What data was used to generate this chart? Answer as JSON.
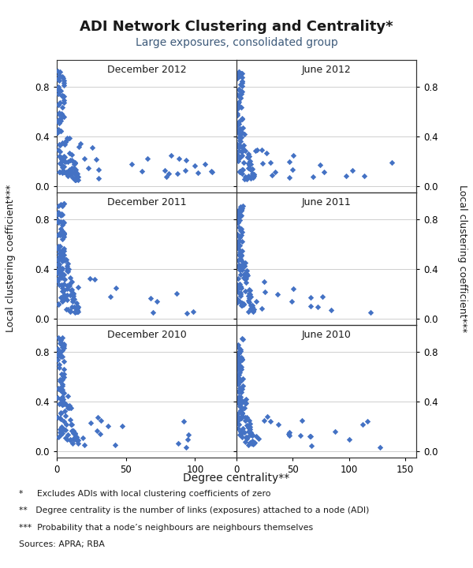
{
  "title": "ADI Network Clustering and Centrality*",
  "subtitle": "Large exposures, consolidated group",
  "xlabel": "Degree centrality**",
  "ylabel_left": "Local clustering coefficient***",
  "ylabel_right": "Local clustering coefficient***",
  "title_color": "#1a1a1a",
  "subtitle_color": "#3d5a7a",
  "panel_title_color": "#1a1a1a",
  "marker_color": "#4472c4",
  "left_xlim": [
    0,
    130
  ],
  "right_xlim": [
    0,
    160
  ],
  "ylim": [
    0.0,
    1.0
  ],
  "left_xticks": [
    0,
    50,
    100
  ],
  "right_xticks": [
    0,
    50,
    100,
    150
  ],
  "yticks": [
    0.0,
    0.4,
    0.8
  ],
  "footnotes": [
    "*     Excludes ADIs with local clustering coefficients of zero",
    "**   Degree centrality is the number of links (exposures) attached to a node (ADI)",
    "***  Probability that a node’s neighbours are neighbours themselves",
    "Sources: APRA; RBA"
  ]
}
